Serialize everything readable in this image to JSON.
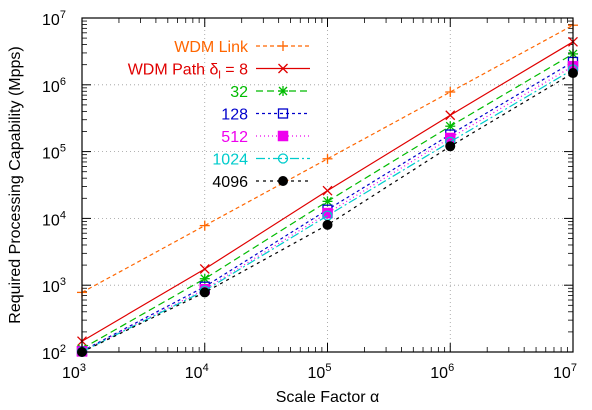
{
  "chart_data": {
    "type": "line",
    "xlabel": "Scale Factor α",
    "ylabel": "Required Processing Capability (Mpps)",
    "x_scale": "log",
    "y_scale": "log",
    "xlim": [
      1000,
      10000000
    ],
    "ylim": [
      100,
      10000000
    ],
    "grid": true,
    "legend_position": "top-left",
    "x_tick_labels": [
      {
        "base": "10",
        "exp": "3"
      },
      {
        "base": "10",
        "exp": "4"
      },
      {
        "base": "10",
        "exp": "5"
      },
      {
        "base": "10",
        "exp": "6"
      },
      {
        "base": "10",
        "exp": "7"
      }
    ],
    "y_tick_labels": [
      {
        "base": "10",
        "exp": "2"
      },
      {
        "base": "10",
        "exp": "3"
      },
      {
        "base": "10",
        "exp": "4"
      },
      {
        "base": "10",
        "exp": "5"
      },
      {
        "base": "10",
        "exp": "6"
      },
      {
        "base": "10",
        "exp": "7"
      }
    ],
    "x": [
      1000,
      10000,
      100000,
      1000000,
      10000000
    ],
    "series": [
      {
        "name": "WDM Link",
        "color": "#ff6600",
        "dash": "4,3",
        "marker": "plus",
        "values": [
          780,
          7800,
          78000,
          780000,
          7800000
        ]
      },
      {
        "name": "WDM Path δ",
        "name_sub": "l",
        "name_suffix": " = 8",
        "color": "#e00000",
        "dash": "",
        "marker": "x",
        "values": [
          145,
          1750,
          26000,
          350000,
          4400000
        ]
      },
      {
        "name": "32",
        "color": "#00bb00",
        "dash": "7,4",
        "marker": "star",
        "values": [
          112,
          1250,
          18000,
          240000,
          2900000
        ]
      },
      {
        "name": "128",
        "color": "#0000cc",
        "dash": "3,3",
        "marker": "open-square",
        "values": [
          103,
          950,
          13500,
          180000,
          2200000
        ]
      },
      {
        "name": "512",
        "color": "#ee00ee",
        "dash": "1,3",
        "marker": "filled-square",
        "values": [
          102,
          870,
          12000,
          160000,
          1900000
        ]
      },
      {
        "name": "1024",
        "color": "#00cccc",
        "dash": "9,3,2,3",
        "marker": "open-circle",
        "values": [
          101,
          830,
          11000,
          140000,
          1700000
        ]
      },
      {
        "name": "4096",
        "color": "#000000",
        "dash": "3,4",
        "marker": "filled-circle",
        "values": [
          100,
          780,
          8000,
          120000,
          1500000
        ]
      }
    ]
  }
}
